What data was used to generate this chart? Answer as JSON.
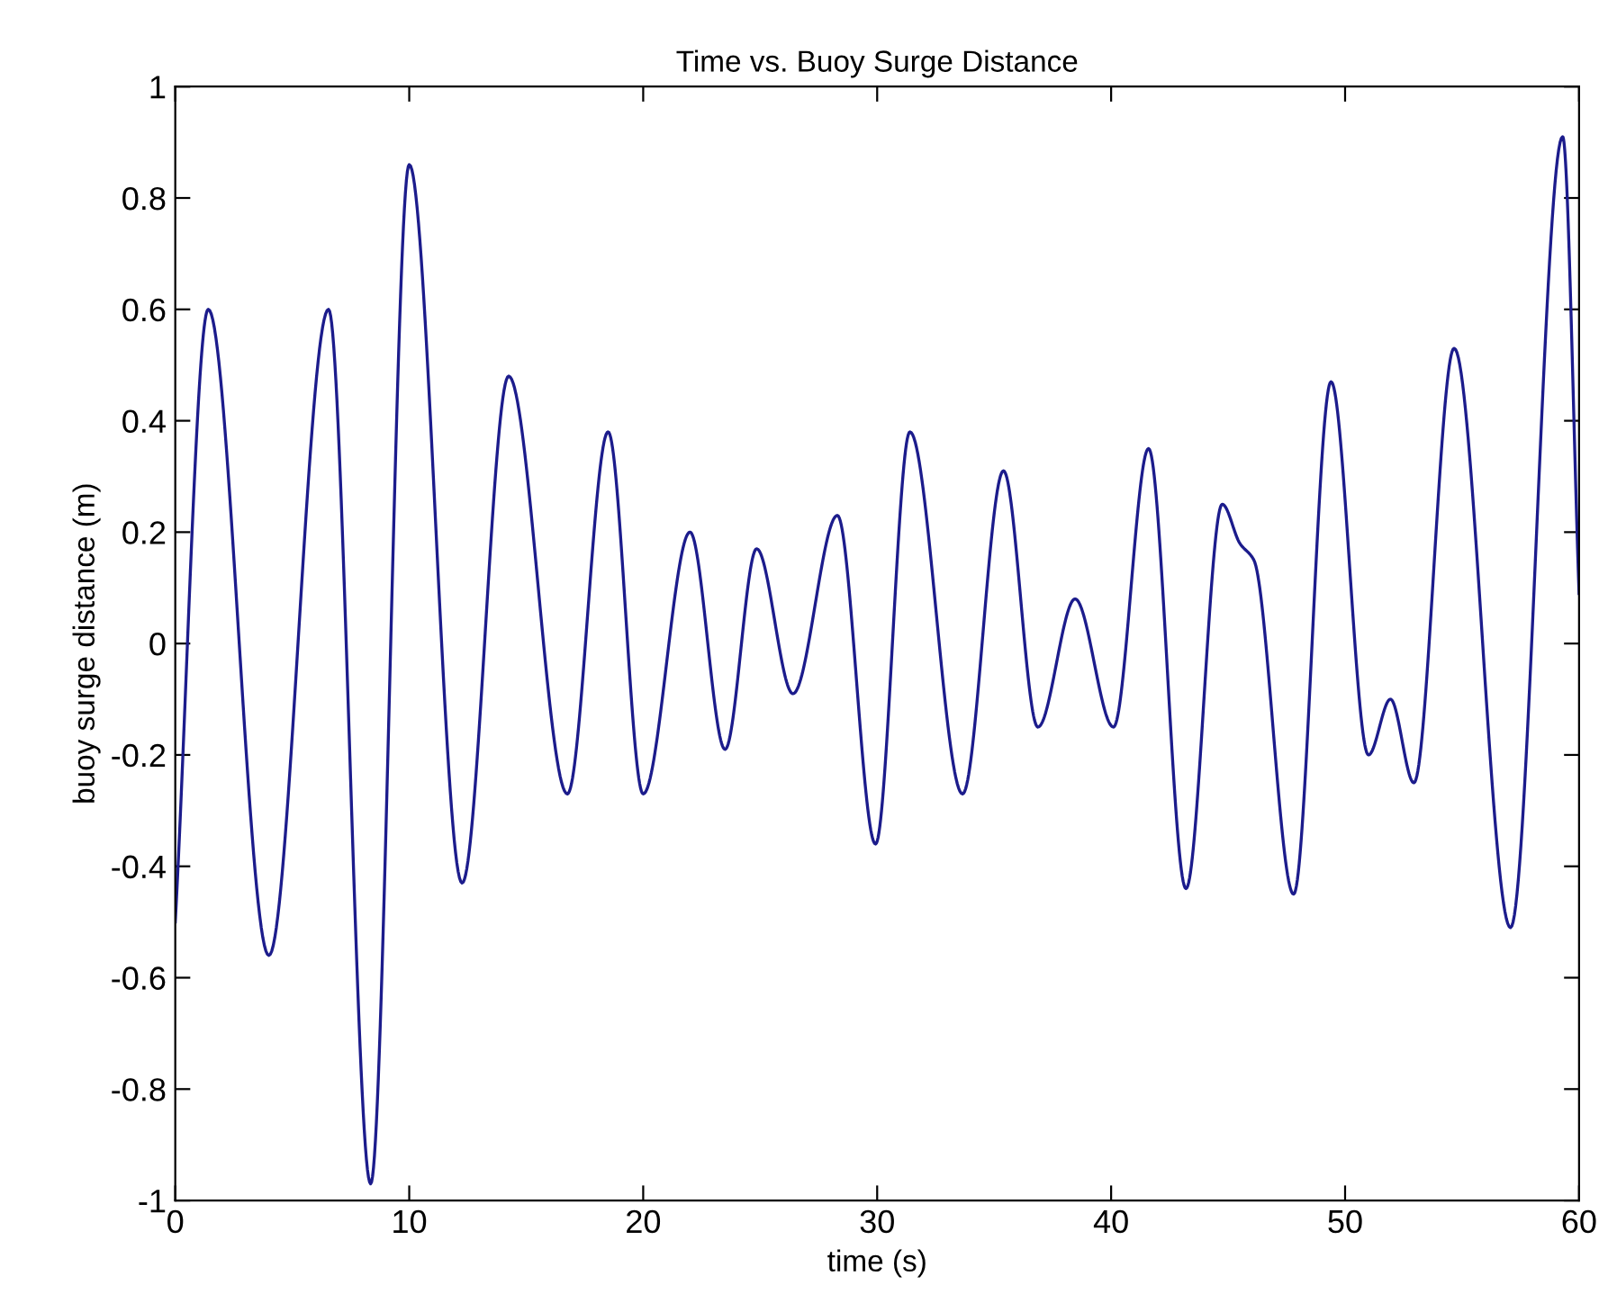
{
  "chart_data": {
    "type": "line",
    "title": "Time vs. Buoy Surge Distance",
    "xlabel": "time (s)",
    "ylabel": "buoy surge distance (m)",
    "x": [
      0,
      1.41,
      4.0,
      6.55,
      8.35,
      10.0,
      12.26,
      14.25,
      16.76,
      18.5,
      20.0,
      22.0,
      23.5,
      24.85,
      26.4,
      28.3,
      29.93,
      31.4,
      33.65,
      35.4,
      36.87,
      38.46,
      40.1,
      41.6,
      43.2,
      44.75,
      45.5,
      46.1,
      47.8,
      49.4,
      51.0,
      51.94,
      52.94,
      54.66,
      57.07,
      59.3,
      60
    ],
    "series": [
      {
        "color": "#1c1c8c",
        "values": [
          -0.5,
          0.6,
          -0.56,
          0.6,
          -0.97,
          0.86,
          -0.43,
          0.48,
          -0.27,
          0.38,
          -0.27,
          0.2,
          -0.19,
          0.17,
          -0.09,
          0.23,
          -0.36,
          0.38,
          -0.27,
          0.31,
          -0.15,
          0.08,
          -0.15,
          0.35,
          -0.44,
          0.25,
          0.18,
          0.15,
          -0.45,
          0.47,
          -0.2,
          -0.1,
          -0.25,
          0.53,
          -0.51,
          0.91,
          0.09
        ]
      }
    ],
    "xlim": [
      0,
      60
    ],
    "ylim": [
      -1,
      1
    ],
    "xticks": [
      0,
      10,
      20,
      30,
      40,
      50,
      60
    ],
    "yticks": [
      -1,
      -0.8,
      -0.6,
      -0.4,
      -0.2,
      0,
      0.2,
      0.4,
      0.6,
      0.8,
      1
    ],
    "grid": false,
    "marker": "none",
    "line_style": "solid"
  }
}
